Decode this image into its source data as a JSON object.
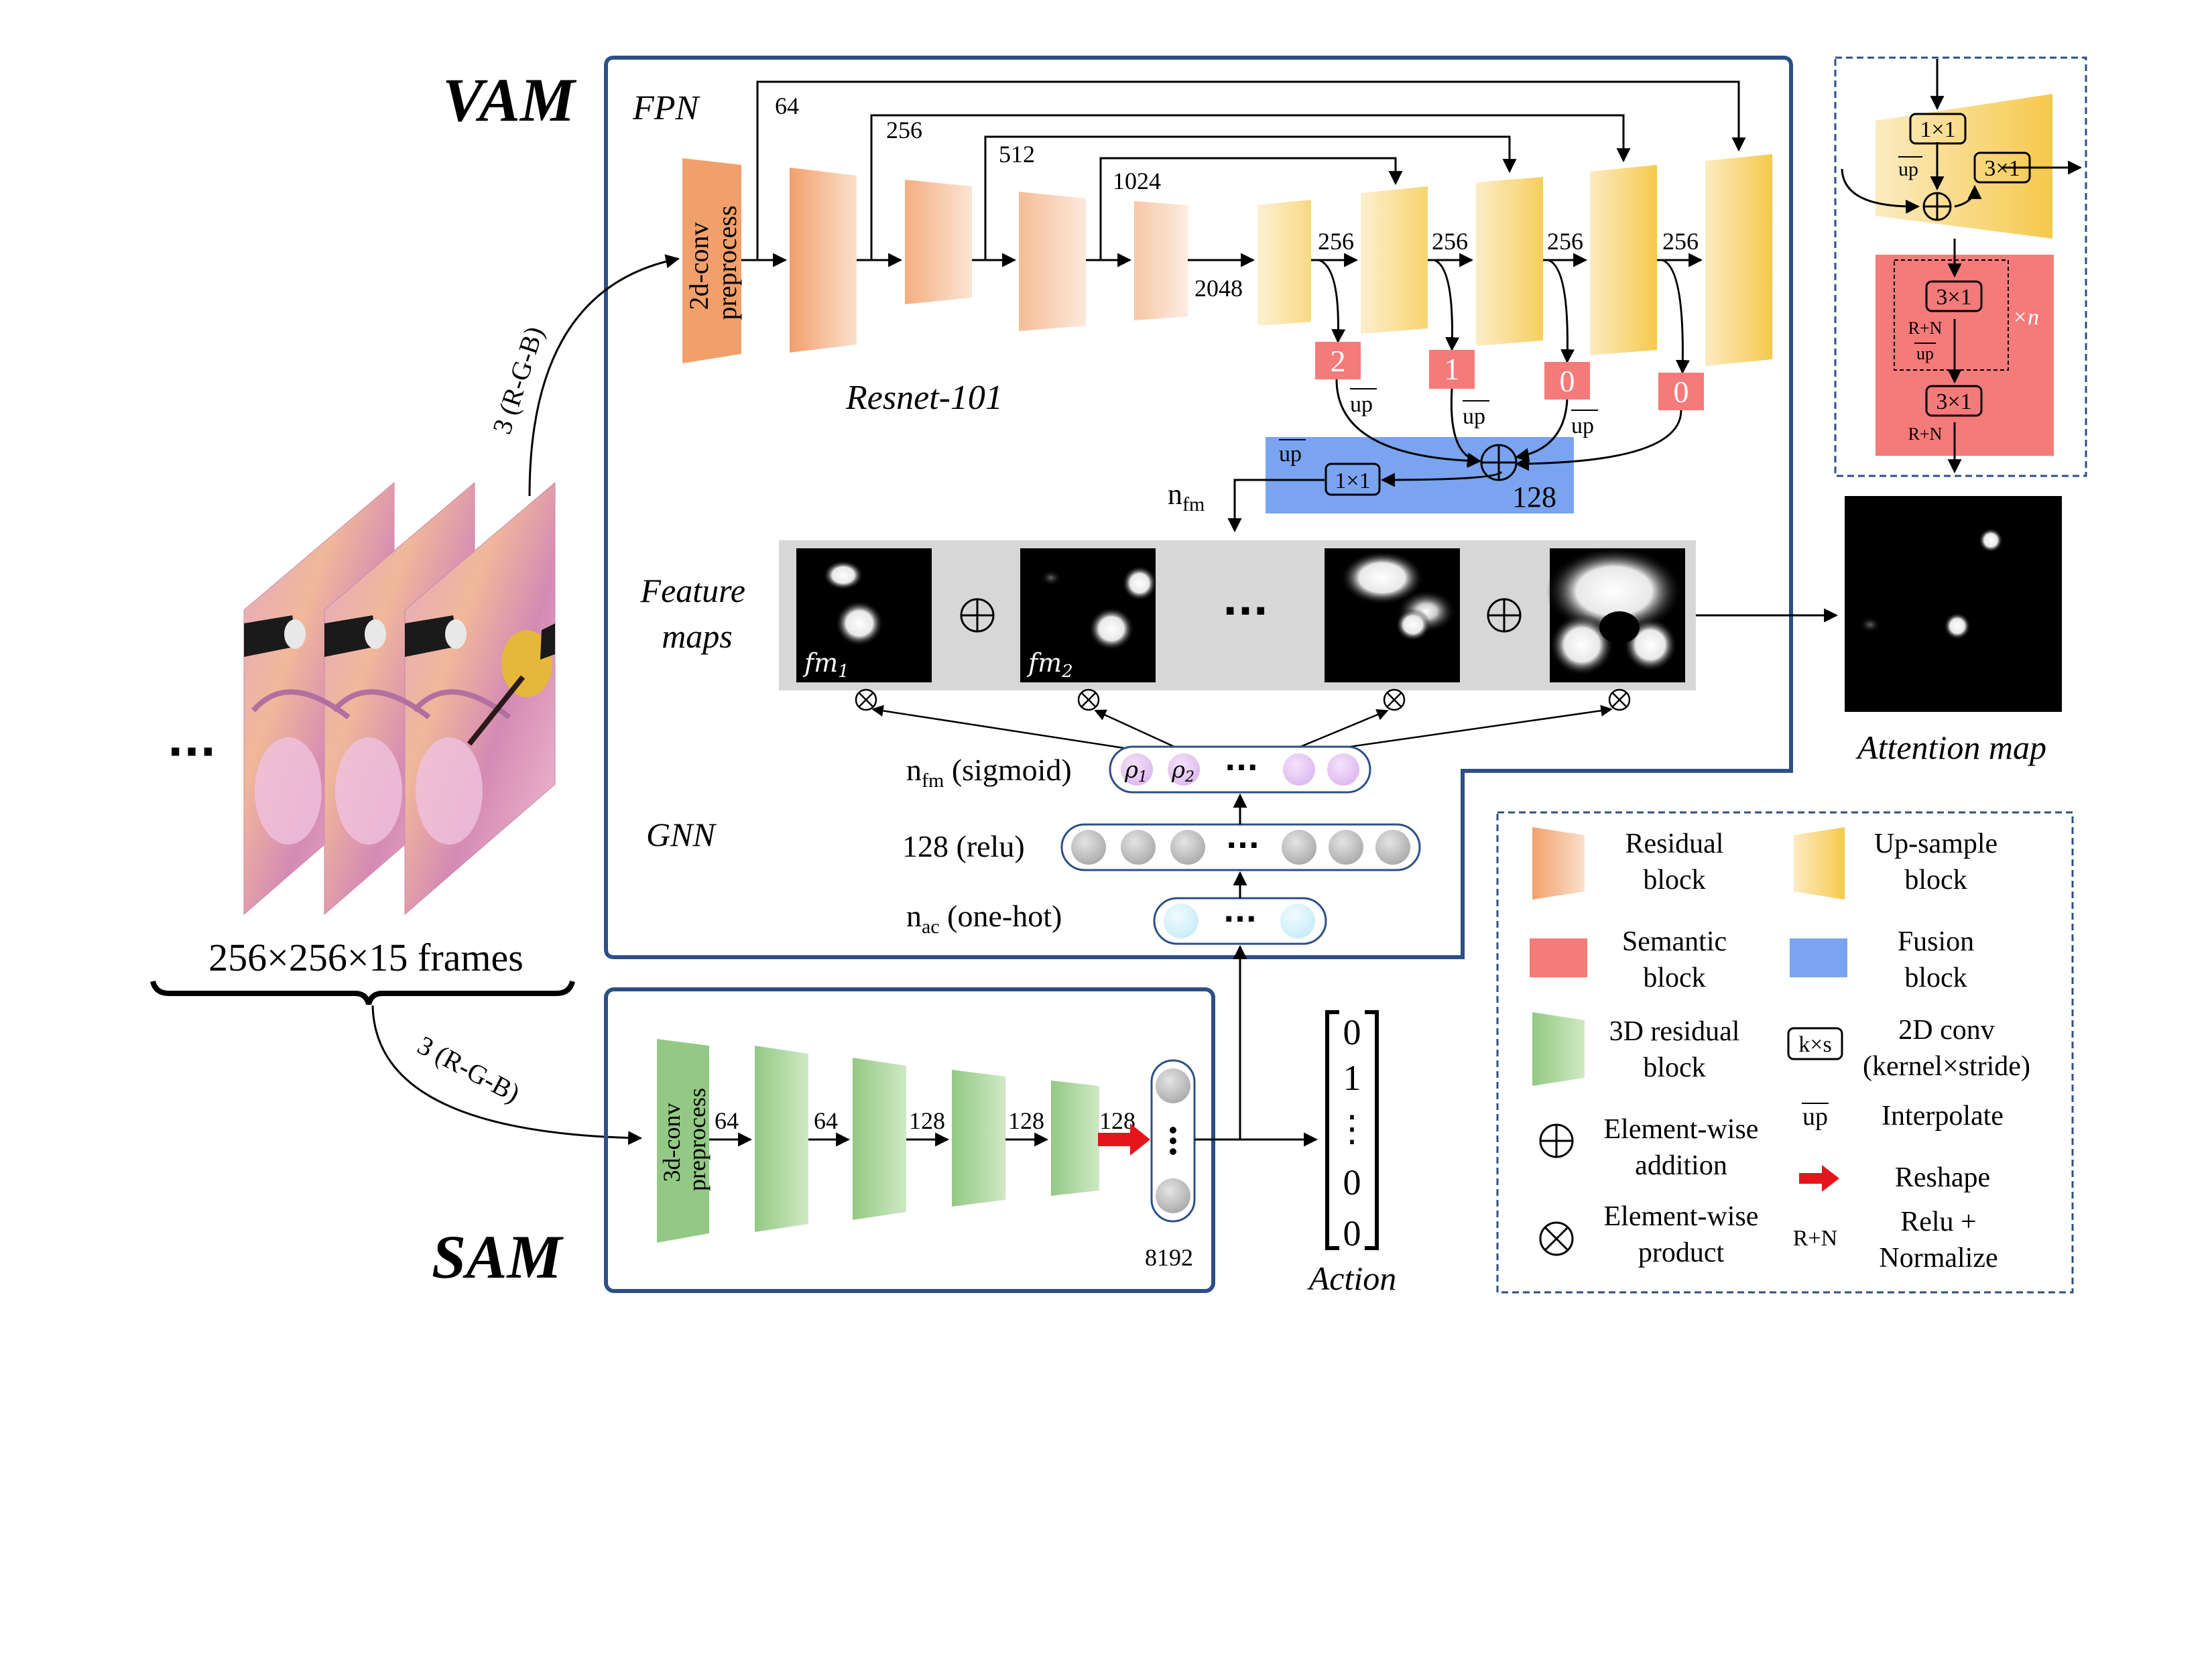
{
  "vam": {
    "title": "VAM",
    "fpn_label": "FPN",
    "resnet_label": "Resnet-101",
    "preprocess_lines": [
      "2d-conv",
      "preprocess"
    ],
    "skip_channels": [
      "64",
      "256",
      "512",
      "1024"
    ],
    "bottleneck_channels": "2048",
    "up_channels": [
      "256",
      "256",
      "256",
      "256"
    ],
    "semantic_values": [
      "2",
      "1",
      "0",
      "0"
    ],
    "up_label": "up",
    "fusion_channels": "128",
    "fusion_conv": "1×1",
    "nfm_main": "n",
    "nfm_sub": "fm"
  },
  "feature_maps": {
    "label_lines": [
      "Feature",
      "maps"
    ],
    "fm1_main": "fm",
    "fm1_sub": "1",
    "fm2_main": "fm",
    "fm2_sub": "2",
    "ellipsis": "···"
  },
  "gnn": {
    "label": "GNN",
    "layer_top_main": "n",
    "layer_top_sub": "fm",
    "layer_top_text": " (sigmoid)",
    "layer_mid_text": "128 (relu)",
    "layer_bot_main": "n",
    "layer_bot_sub": "ac",
    "layer_bot_text": "  (one-hot)",
    "rho1_main": "ρ",
    "rho1_sub": "1",
    "rho2_main": "ρ",
    "rho2_sub": "2",
    "ellipsis": "···"
  },
  "input": {
    "frames_label": "256×256×15 frames",
    "ellipsis": "···",
    "rgb_top": "3 (R-G-B)",
    "rgb_bottom": "3 (R-G-B)"
  },
  "sam": {
    "title": "SAM",
    "preprocess_lines": [
      "3d-conv",
      "preprocess"
    ],
    "channels": [
      "64",
      "64",
      "128",
      "128",
      "128"
    ],
    "vector_size": "8192"
  },
  "action": {
    "label": "Action",
    "vector": [
      "0",
      "1",
      "⋮",
      "0",
      "0"
    ]
  },
  "attention": {
    "label": "Attention map"
  },
  "detail": {
    "conv1": "1×1",
    "conv2": "3×1",
    "up": "up",
    "conv3": "3×1",
    "rn1": "R+N",
    "up2": "up",
    "times_n": "×n",
    "conv4": "3×1",
    "rn2": "R+N"
  },
  "legend": {
    "residual_lines": [
      "Residual",
      "block"
    ],
    "upsample_lines": [
      "Up-sample",
      "block"
    ],
    "semantic_lines": [
      "Semantic",
      "block"
    ],
    "fusion_lines": [
      "Fusion",
      "block"
    ],
    "res3d_lines": [
      "3D residual",
      "block"
    ],
    "conv2d_symbol": "k×s",
    "conv2d_lines": [
      "2D conv",
      "(kernel×stride)"
    ],
    "addition_lines": [
      "Element-wise",
      "addition"
    ],
    "interpolate_symbol": "up",
    "interpolate_text": "Interpolate",
    "product_lines": [
      "Element-wise",
      "product"
    ],
    "reshape_text": "Reshape",
    "rn_symbol": "R+N",
    "rn_lines": [
      "Relu +",
      "Normalize"
    ]
  },
  "colors": {
    "frame_blue": "#2c4f86",
    "semantic": "#f57a7a",
    "fusion": "#7aa4f0",
    "green": "#a6d49a",
    "residual": "#f2a06b",
    "upsample": "#f8d36c"
  }
}
